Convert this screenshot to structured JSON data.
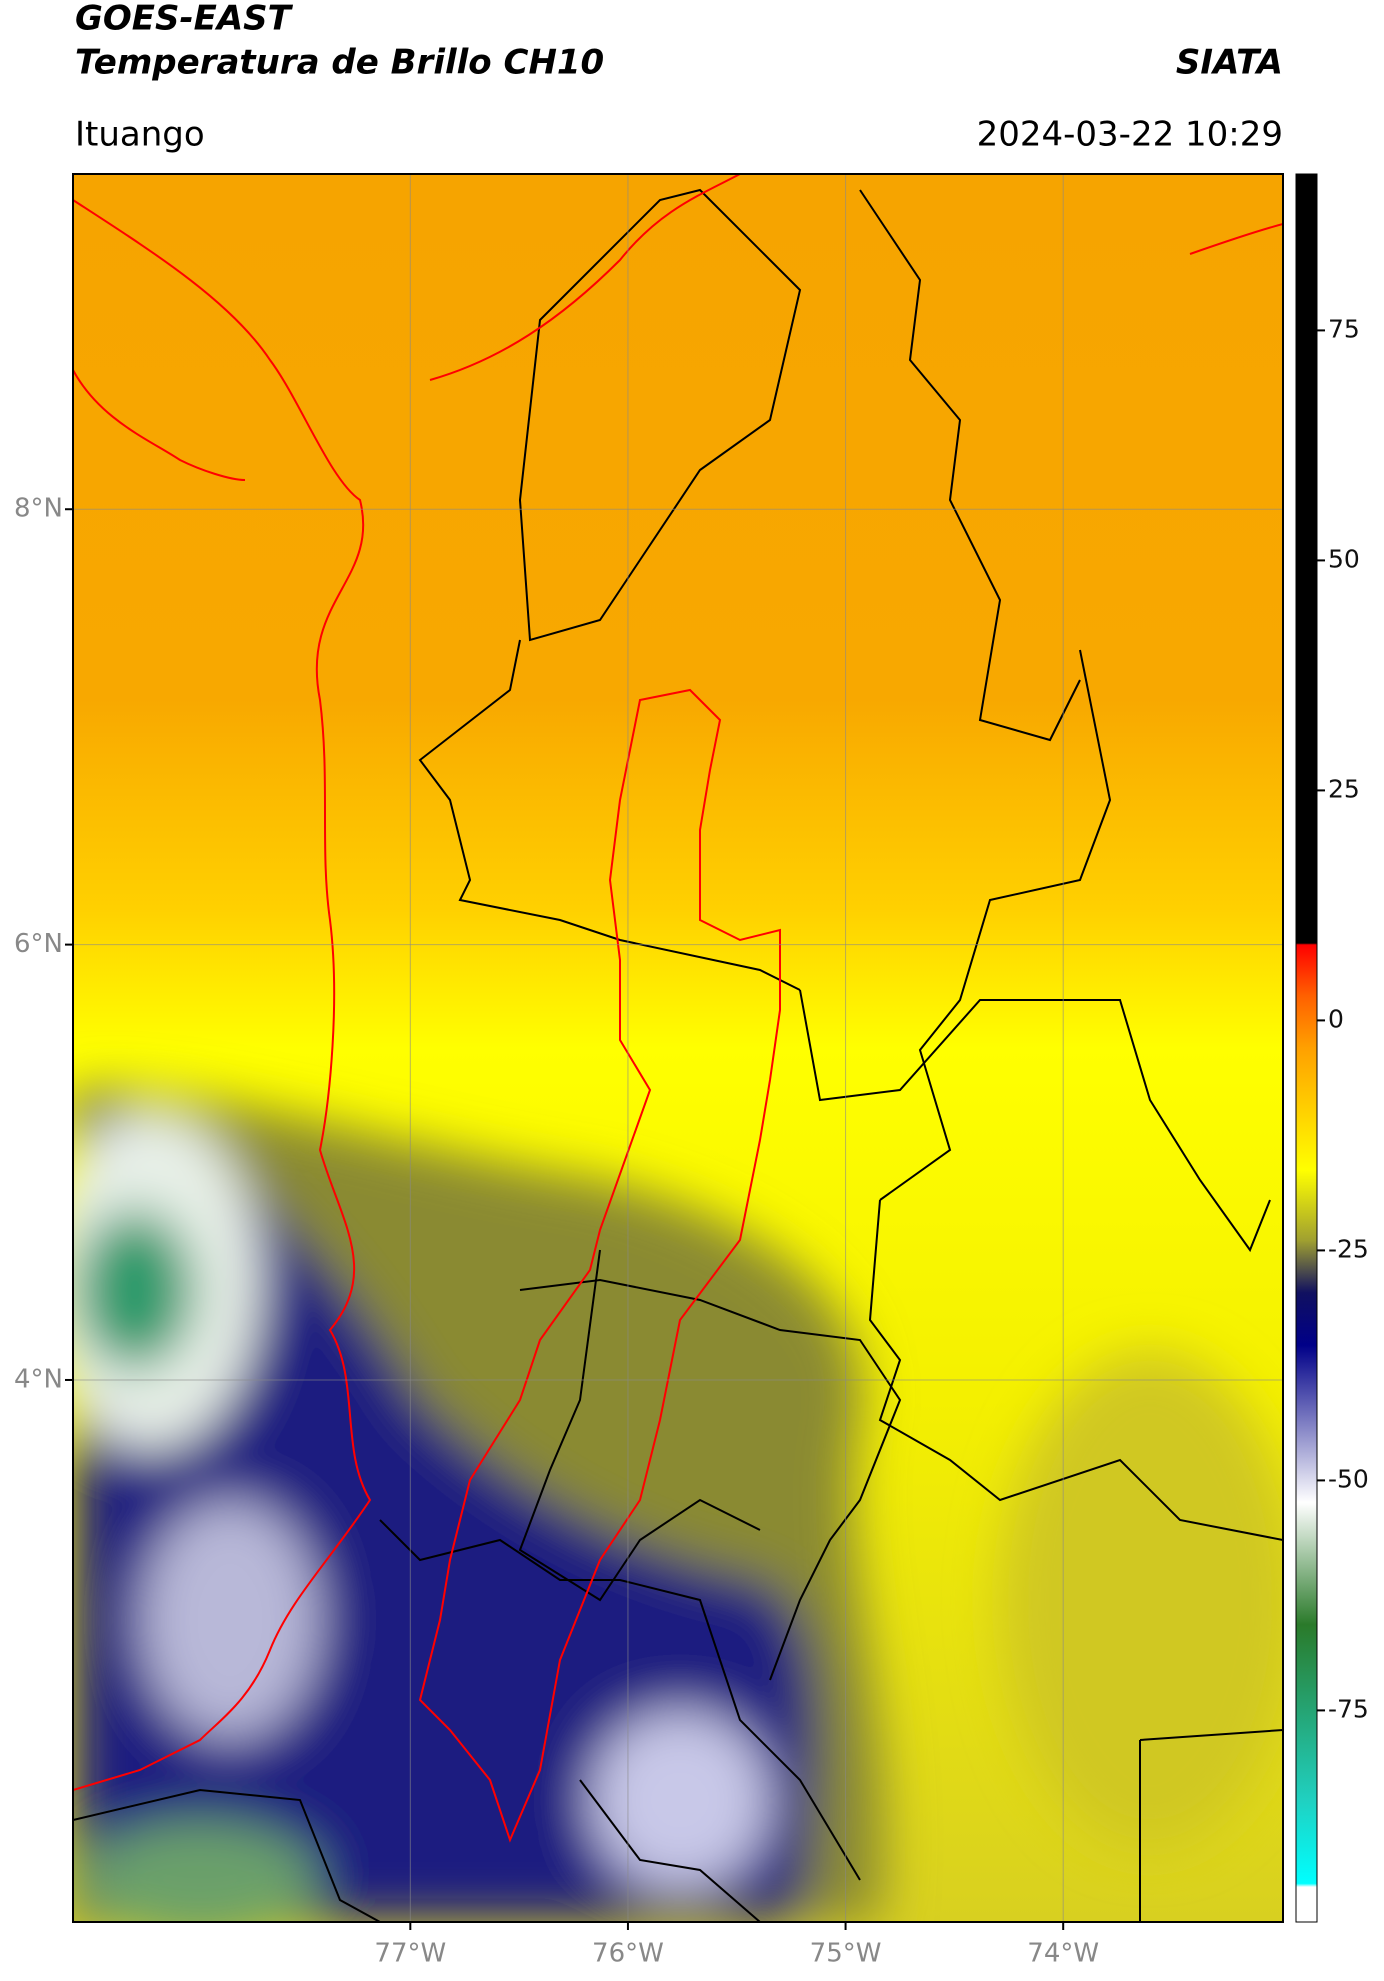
{
  "header": {
    "title": "GOES-EAST",
    "subtitle": "Temperatura de Brillo CH10",
    "source": "SIATA",
    "location": "Ituango",
    "datetime": "2024-03-22 10:29"
  },
  "map": {
    "lat_lim": [
      1.51,
      9.54
    ],
    "lon_lim": [
      -78.55,
      -72.99
    ],
    "lat_ticks": [
      {
        "value": 8,
        "label": "8°N"
      },
      {
        "value": 6,
        "label": "6°N"
      },
      {
        "value": 4,
        "label": "4°N"
      }
    ],
    "lon_ticks": [
      {
        "value": -77,
        "label": "77°W"
      },
      {
        "value": -76,
        "label": "76°W"
      },
      {
        "value": -75,
        "label": "75°W"
      },
      {
        "value": -74,
        "label": "74°W"
      }
    ],
    "grid": true
  },
  "colorbar": {
    "lim": [
      -98,
      92
    ],
    "ticks": [
      75,
      50,
      25,
      0,
      -25,
      -50,
      -75
    ]
  }
}
